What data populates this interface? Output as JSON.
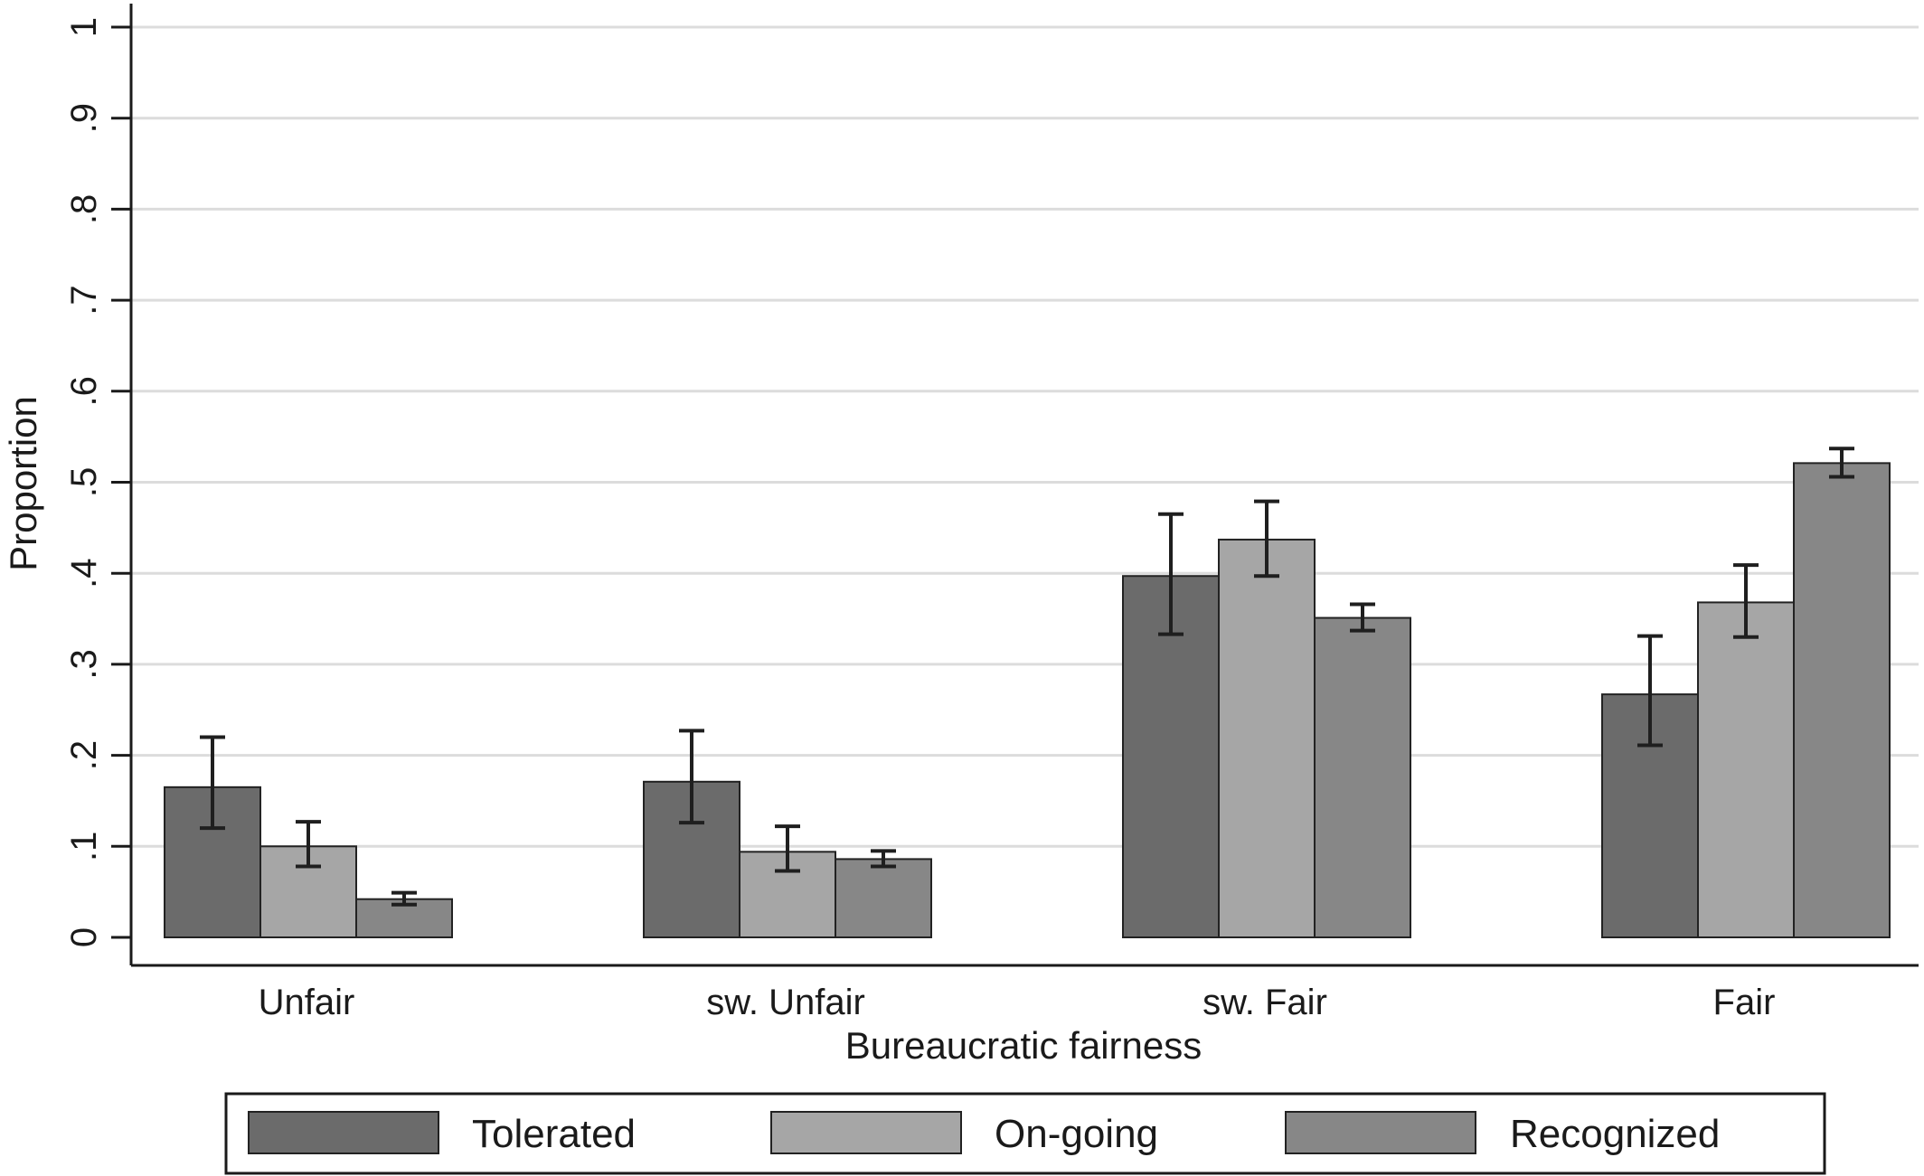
{
  "chart_data": {
    "type": "bar",
    "categories": [
      "Unfair",
      "sw. Unfair",
      "sw. Fair",
      "Fair"
    ],
    "xlabel": "Bureaucratic fairness",
    "ylabel": "Proportion",
    "ylim": [
      0,
      1
    ],
    "yticks": [
      0,
      0.1,
      0.2,
      0.3,
      0.4,
      0.5,
      0.6,
      0.7,
      0.8,
      0.9,
      1
    ],
    "ytick_labels": [
      "0",
      ".1",
      ".2",
      ".3",
      ".4",
      ".5",
      ".6",
      ".7",
      ".8",
      ".9",
      "1"
    ],
    "grid": true,
    "legend_position": "bottom",
    "error_bars": true,
    "series": [
      {
        "name": "Tolerated",
        "color": "#6b6b6b",
        "values": [
          0.165,
          0.171,
          0.397,
          0.267
        ],
        "ci_low": [
          0.12,
          0.126,
          0.333,
          0.211
        ],
        "ci_high": [
          0.22,
          0.227,
          0.465,
          0.331
        ]
      },
      {
        "name": "On-going",
        "color": "#a6a6a6",
        "values": [
          0.1,
          0.094,
          0.437,
          0.368
        ],
        "ci_low": [
          0.078,
          0.073,
          0.397,
          0.33
        ],
        "ci_high": [
          0.127,
          0.122,
          0.479,
          0.409
        ]
      },
      {
        "name": "Recognized",
        "color": "#878787",
        "values": [
          0.042,
          0.086,
          0.351,
          0.521
        ],
        "ci_low": [
          0.036,
          0.078,
          0.337,
          0.506
        ],
        "ci_high": [
          0.049,
          0.095,
          0.366,
          0.537
        ]
      }
    ]
  }
}
